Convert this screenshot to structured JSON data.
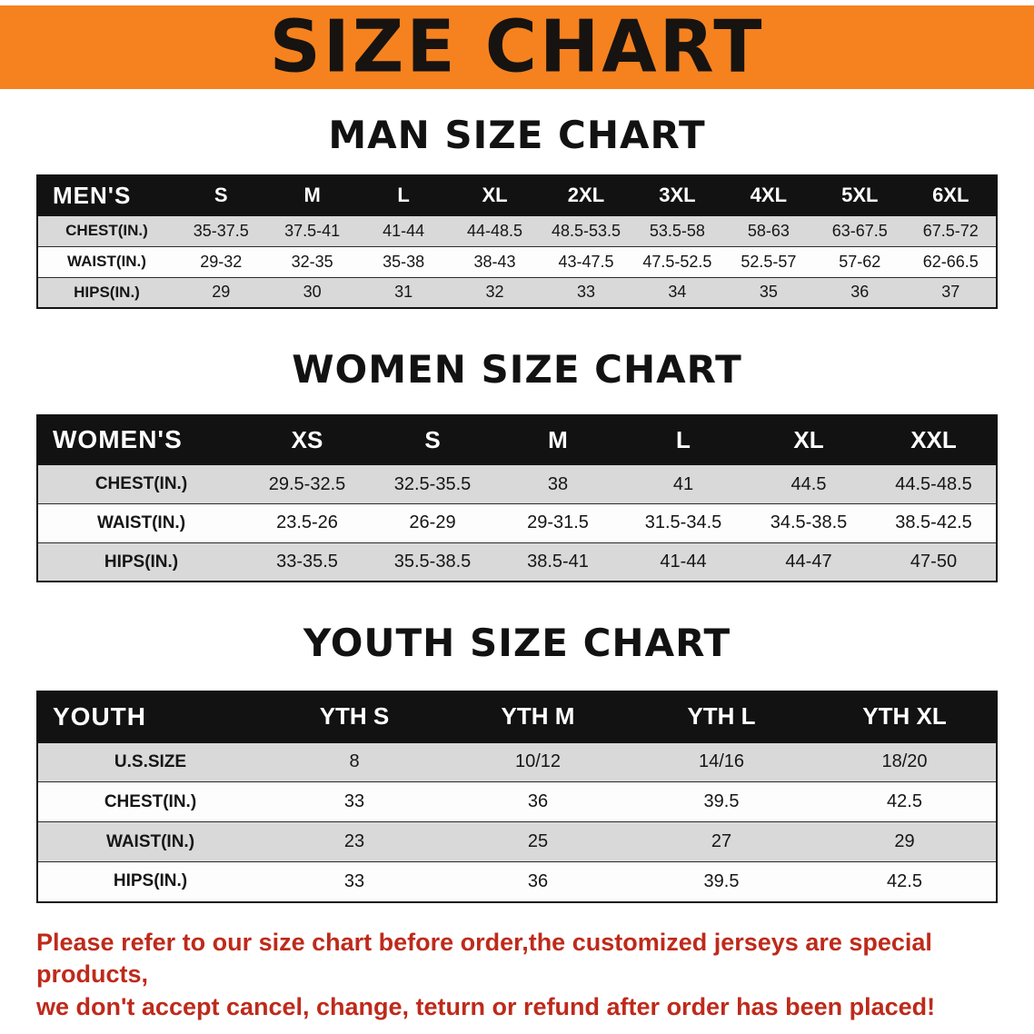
{
  "banner": {
    "title": "SIZE CHART",
    "bg_color": "#F5821F",
    "text_color": "#171310"
  },
  "sections": [
    {
      "heading": "MAN SIZE CHART",
      "table": {
        "header": [
          "MEN'S",
          "S",
          "M",
          "L",
          "XL",
          "2XL",
          "3XL",
          "4XL",
          "5XL",
          "6XL"
        ],
        "rows": [
          {
            "label": "CHEST(IN.)",
            "values": [
              "35-37.5",
              "37.5-41",
              "41-44",
              "44-48.5",
              "48.5-53.5",
              "53.5-58",
              "58-63",
              "63-67.5",
              "67.5-72"
            ]
          },
          {
            "label": "WAIST(IN.)",
            "values": [
              "29-32",
              "32-35",
              "35-38",
              "38-43",
              "43-47.5",
              "47.5-52.5",
              "52.5-57",
              "57-62",
              "62-66.5"
            ]
          },
          {
            "label": "HIPS(IN.)",
            "values": [
              "29",
              "30",
              "31",
              "32",
              "33",
              "34",
              "35",
              "36",
              "37"
            ]
          }
        ]
      }
    },
    {
      "heading": "WOMEN SIZE CHART",
      "table": {
        "header": [
          "WOMEN'S",
          "XS",
          "S",
          "M",
          "L",
          "XL",
          "XXL"
        ],
        "rows": [
          {
            "label": "CHEST(IN.)",
            "values": [
              "29.5-32.5",
              "32.5-35.5",
              "38",
              "41",
              "44.5",
              "44.5-48.5"
            ]
          },
          {
            "label": "WAIST(IN.)",
            "values": [
              "23.5-26",
              "26-29",
              "29-31.5",
              "31.5-34.5",
              "34.5-38.5",
              "38.5-42.5"
            ]
          },
          {
            "label": "HIPS(IN.)",
            "values": [
              "33-35.5",
              "35.5-38.5",
              "38.5-41",
              "41-44",
              "44-47",
              "47-50"
            ]
          }
        ]
      }
    },
    {
      "heading": "YOUTH SIZE CHART",
      "table": {
        "header": [
          "YOUTH",
          "YTH S",
          "YTH M",
          "YTH L",
          "YTH XL"
        ],
        "rows": [
          {
            "label": "U.S.SIZE",
            "values": [
              "8",
              "10/12",
              "14/16",
              "18/20"
            ]
          },
          {
            "label": "CHEST(IN.)",
            "values": [
              "33",
              "36",
              "39.5",
              "42.5"
            ]
          },
          {
            "label": "WAIST(IN.)",
            "values": [
              "23",
              "25",
              "27",
              "29"
            ]
          },
          {
            "label": "HIPS(IN.)",
            "values": [
              "33",
              "36",
              "39.5",
              "42.5"
            ]
          }
        ]
      }
    }
  ],
  "footer": {
    "line1": "Please refer to our size chart before order,the customized jerseys are special products,",
    "line2": "we don't accept cancel, change, teturn or refund after order has been placed!",
    "text_color": "#BE2A1B"
  },
  "table_colors": {
    "header_bg": "#121212",
    "header_text": "#ffffff",
    "stripe_gray": "#d9d9d9",
    "stripe_white": "#fdfdfd"
  }
}
